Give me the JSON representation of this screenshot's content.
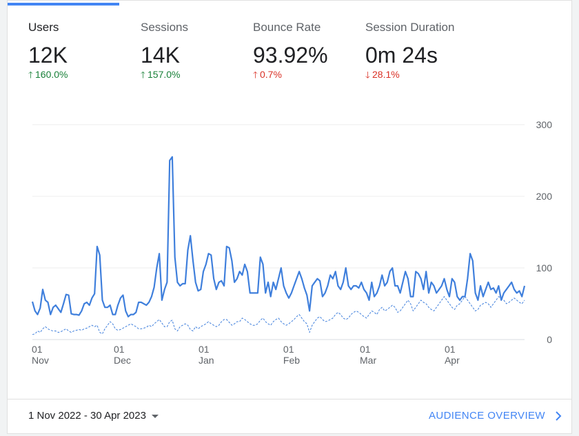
{
  "metrics": [
    {
      "label": "Users",
      "value": "12K",
      "delta": "160.0%",
      "direction": "up",
      "active": true
    },
    {
      "label": "Sessions",
      "value": "14K",
      "delta": "157.0%",
      "direction": "up",
      "active": false
    },
    {
      "label": "Bounce Rate",
      "value": "93.92%",
      "delta": "0.7%",
      "direction": "up_bad",
      "active": false
    },
    {
      "label": "Session Duration",
      "value": "0m 24s",
      "delta": "28.1%",
      "direction": "down_bad",
      "active": false
    }
  ],
  "footer": {
    "date_range": "1 Nov 2022 - 30 Apr 2023",
    "overview_link": "AUDIENCE OVERVIEW"
  },
  "colors": {
    "accent": "#4285f4",
    "positive": "#188038",
    "negative": "#d93025"
  },
  "chart_data": {
    "type": "line",
    "x_start": "2022-11-01",
    "x_end": "2023-04-30",
    "ylim": [
      0,
      300
    ],
    "y_ticks": [
      0,
      100,
      200,
      300
    ],
    "x_ticks": [
      {
        "day": "01",
        "month": "Nov",
        "date": "2022-11-01"
      },
      {
        "day": "01",
        "month": "Dec",
        "date": "2022-12-01"
      },
      {
        "day": "01",
        "month": "Jan",
        "date": "2023-01-01"
      },
      {
        "day": "01",
        "month": "Feb",
        "date": "2023-02-01"
      },
      {
        "day": "01",
        "month": "Mar",
        "date": "2023-03-01"
      },
      {
        "day": "01",
        "month": "Apr",
        "date": "2023-04-01"
      }
    ],
    "grid": true,
    "series": [
      {
        "style": "solid",
        "values": [
          53,
          40,
          35,
          44,
          70,
          55,
          52,
          35,
          45,
          48,
          43,
          38,
          50,
          63,
          62,
          36,
          35,
          35,
          34,
          40,
          50,
          52,
          48,
          58,
          64,
          130,
          118,
          55,
          45,
          45,
          48,
          35,
          35,
          48,
          58,
          62,
          40,
          32,
          35,
          35,
          38,
          52,
          52,
          50,
          48,
          52,
          60,
          73,
          100,
          120,
          55,
          70,
          80,
          250,
          255,
          115,
          80,
          75,
          78,
          78,
          125,
          145,
          110,
          80,
          68,
          70,
          95,
          105,
          120,
          118,
          85,
          70,
          80,
          82,
          75,
          130,
          128,
          110,
          80,
          85,
          95,
          90,
          105,
          95,
          65,
          65,
          65,
          65,
          115,
          105,
          65,
          80,
          60,
          80,
          70,
          85,
          100,
          75,
          65,
          58,
          65,
          75,
          85,
          95,
          85,
          72,
          62,
          40,
          75,
          80,
          85,
          82,
          60,
          65,
          75,
          90,
          85,
          95,
          75,
          70,
          80,
          100,
          75,
          70,
          75,
          75,
          72,
          80,
          70,
          65,
          55,
          80,
          60,
          65,
          75,
          90,
          75,
          80,
          95,
          100,
          75,
          75,
          65,
          80,
          95,
          85,
          60,
          60,
          95,
          92,
          85,
          70,
          95,
          65,
          80,
          75,
          65,
          70,
          75,
          85,
          70,
          60,
          85,
          80,
          60,
          55,
          60,
          60,
          85,
          120,
          110,
          65,
          55,
          75,
          60,
          70,
          80,
          70,
          72,
          65,
          75,
          55,
          65,
          70,
          75,
          80,
          70,
          65,
          68,
          60,
          75
        ]
      },
      {
        "style": "dashed",
        "values": [
          7,
          8,
          12,
          10,
          15,
          18,
          15,
          13,
          12,
          12,
          10,
          11,
          13,
          15,
          12,
          10,
          12,
          13,
          14,
          13,
          15,
          16,
          18,
          20,
          18,
          20,
          10,
          8,
          15,
          20,
          25,
          22,
          15,
          13,
          14,
          16,
          18,
          20,
          22,
          20,
          18,
          15,
          15,
          16,
          17,
          20,
          18,
          22,
          25,
          28,
          23,
          18,
          18,
          25,
          27,
          15,
          12,
          18,
          20,
          22,
          20,
          14,
          12,
          18,
          15,
          18,
          20,
          22,
          25,
          22,
          20,
          18,
          20,
          25,
          28,
          28,
          24,
          20,
          22,
          25,
          25,
          30,
          28,
          25,
          22,
          20,
          20,
          22,
          27,
          30,
          25,
          22,
          20,
          25,
          28,
          30,
          25,
          22,
          20,
          22,
          25,
          28,
          32,
          35,
          30,
          25,
          22,
          10,
          20,
          25,
          30,
          32,
          28,
          25,
          26,
          28,
          30,
          35,
          38,
          35,
          30,
          28,
          30,
          35,
          38,
          40,
          38,
          35,
          32,
          30,
          35,
          40,
          38,
          35,
          42,
          45,
          40,
          42,
          45,
          48,
          45,
          38,
          40,
          45,
          50,
          55,
          50,
          40,
          45,
          50,
          55,
          52,
          50,
          45,
          42,
          40,
          45,
          50,
          55,
          60,
          55,
          50,
          45,
          42,
          48,
          50,
          55,
          60,
          55,
          50,
          45,
          40,
          42,
          48,
          50,
          52,
          50,
          45,
          50,
          55,
          60,
          58,
          55,
          50,
          52,
          55,
          58,
          55,
          52,
          50,
          55
        ]
      }
    ]
  }
}
